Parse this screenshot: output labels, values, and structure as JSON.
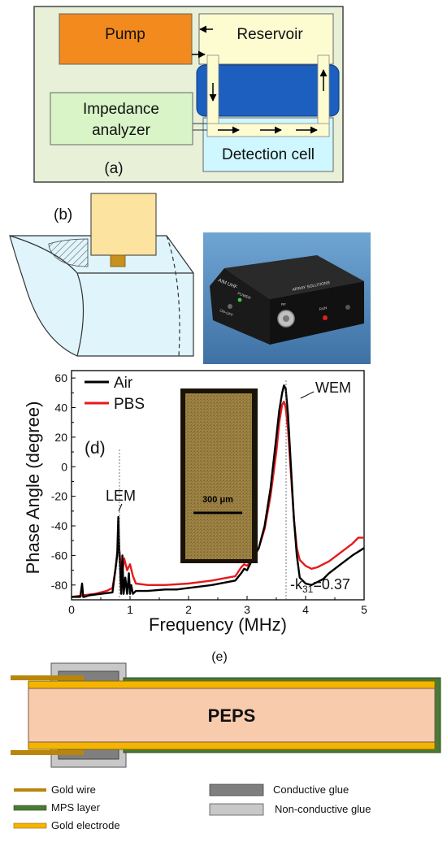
{
  "panel_a": {
    "label": "(a)",
    "pump": "Pump",
    "reservoir": "Reservoir",
    "impedance_line1": "Impedance",
    "impedance_line2": "analyzer",
    "detection_cell": "Detection cell",
    "colors": {
      "frame": "#e8f0d8",
      "pump": "#f28a1e",
      "reservoir": "#fdfbd0",
      "impedance": "#d9f5c8",
      "detection": "#cff7ff",
      "tube": "#1d5fbf"
    }
  },
  "panel_b": {
    "label": "(b)",
    "device": {
      "brand": "AIM UHF",
      "maker": "ARRAY SOLUTIONS",
      "power": "POWER",
      "on_off": "ON-OFF",
      "run": "RUN",
      "connector_label": "RF"
    },
    "colors": {
      "probe": "#fde3a0",
      "electrode": "#c8901c",
      "cell": "#dff4fb",
      "device_bg": "#5b93c5"
    }
  },
  "panel_d": {
    "label": "(d)",
    "annotation_lem": "LEM",
    "annotation_wem": "WEM",
    "annotation_k31": "-k",
    "annotation_k31_sub": "31",
    "annotation_k31_value": "=0.37",
    "inset_scale": "300 μm"
  },
  "chart_data": {
    "type": "line",
    "xlabel": "Frequency (MHz)",
    "ylabel": "Phase Angle (degree)",
    "xlim": [
      0,
      5
    ],
    "ylim": [
      -90,
      65
    ],
    "xticks": [
      0,
      1,
      2,
      3,
      4,
      5
    ],
    "yticks": [
      -80,
      -60,
      -40,
      -20,
      0,
      20,
      40,
      60
    ],
    "grid": false,
    "legend": "top-left",
    "series": [
      {
        "name": "Air",
        "color": "#000000",
        "x": [
          0.0,
          0.15,
          0.18,
          0.2,
          0.22,
          0.3,
          0.5,
          0.7,
          0.78,
          0.8,
          0.82,
          0.85,
          0.87,
          0.89,
          0.92,
          0.95,
          0.98,
          1.0,
          1.02,
          1.05,
          1.1,
          1.3,
          1.6,
          1.8,
          2.0,
          2.4,
          2.8,
          2.9,
          2.95,
          3.0,
          3.1,
          3.2,
          3.3,
          3.4,
          3.5,
          3.55,
          3.6,
          3.63,
          3.66,
          3.7,
          3.75,
          3.8,
          3.85,
          3.9,
          4.0,
          4.1,
          4.2,
          4.3,
          4.4,
          4.6,
          4.8,
          5.0
        ],
        "y": [
          -88,
          -88,
          -79,
          -88,
          -88,
          -87,
          -86,
          -85,
          -60,
          -34,
          -60,
          -86,
          -60,
          -86,
          -75,
          -86,
          -72,
          -86,
          -80,
          -86,
          -84,
          -84,
          -83,
          -83,
          -82,
          -80,
          -77,
          -72,
          -69,
          -70,
          -62,
          -55,
          -40,
          -15,
          20,
          38,
          50,
          55,
          53,
          35,
          0,
          -35,
          -60,
          -75,
          -79,
          -80,
          -78,
          -76,
          -72,
          -66,
          -60,
          -55
        ]
      },
      {
        "name": "PBS",
        "color": "#e41a1c",
        "x": [
          0.0,
          0.2,
          0.4,
          0.6,
          0.7,
          0.75,
          0.78,
          0.82,
          0.86,
          0.9,
          0.95,
          1.0,
          1.05,
          1.1,
          1.3,
          1.6,
          2.0,
          2.4,
          2.8,
          2.9,
          2.95,
          3.0,
          3.1,
          3.2,
          3.3,
          3.4,
          3.5,
          3.55,
          3.6,
          3.63,
          3.66,
          3.7,
          3.75,
          3.8,
          3.85,
          3.9,
          4.0,
          4.1,
          4.2,
          4.3,
          4.4,
          4.6,
          4.8,
          4.9,
          5.0
        ],
        "y": [
          -88,
          -87,
          -86,
          -84,
          -82,
          -70,
          -58,
          -57,
          -75,
          -62,
          -70,
          -66,
          -74,
          -79,
          -80,
          -80,
          -79,
          -77,
          -74,
          -68,
          -66,
          -67,
          -62,
          -55,
          -42,
          -20,
          10,
          30,
          42,
          44,
          40,
          25,
          -5,
          -35,
          -55,
          -63,
          -67,
          -69,
          -68,
          -66,
          -64,
          -58,
          -52,
          -48,
          -48
        ]
      }
    ]
  },
  "panel_e": {
    "label": "(e)",
    "core_text": "PEPS",
    "legend": {
      "gold_wire": "Gold wire",
      "mps_layer": "MPS layer",
      "gold_electrode": "Gold electrode",
      "conductive_glue": "Conductive glue",
      "non_conductive_glue": "Non-conductive glue"
    },
    "colors": {
      "gold_wire": "#b8860b",
      "mps": "#4a7a34",
      "gold_electrode": "#f5b400",
      "core": "#f8cbad",
      "conductive": "#7f7f7f",
      "non_conductive": "#c8c8c8"
    }
  }
}
